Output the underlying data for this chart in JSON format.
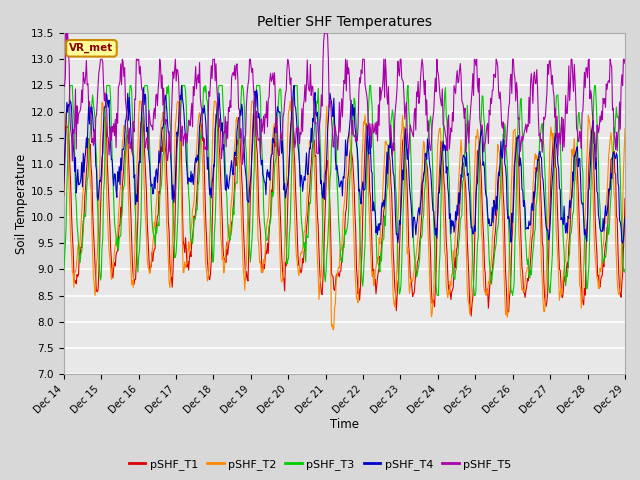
{
  "title": "Peltier SHF Temperatures",
  "xlabel": "Time",
  "ylabel": "Soil Temperature",
  "ylim": [
    7.0,
    13.5
  ],
  "yticks": [
    7.0,
    7.5,
    8.0,
    8.5,
    9.0,
    9.5,
    10.0,
    10.5,
    11.0,
    11.5,
    12.0,
    12.5,
    13.0,
    13.5
  ],
  "series_names": [
    "pSHF_T1",
    "pSHF_T2",
    "pSHF_T3",
    "pSHF_T4",
    "pSHF_T5"
  ],
  "colors": [
    "#dd0000",
    "#ff8800",
    "#00cc00",
    "#0000cc",
    "#aa00aa"
  ],
  "annotation_label": "VR_met",
  "annotation_color": "#cc8800",
  "annotation_bg": "#ffff99",
  "n_points": 720,
  "x_start": 14,
  "x_end": 29,
  "xtick_positions": [
    14,
    15,
    16,
    17,
    18,
    19,
    20,
    21,
    22,
    23,
    24,
    25,
    26,
    27,
    28,
    29
  ],
  "xtick_labels": [
    "Dec 14",
    "Dec 15",
    "Dec 16",
    "Dec 17",
    "Dec 18",
    "Dec 19",
    "Dec 20",
    "Dec 21",
    "Dec 22",
    "Dec 23",
    "Dec 24",
    "Dec 25",
    "Dec 26",
    "Dec 27",
    "Dec 28",
    "Dec 29"
  ],
  "background_color": "#d8d8d8",
  "plot_bg": "#e8e8e8",
  "grid_color": "#ffffff",
  "linewidth": 0.8,
  "seed": 42
}
